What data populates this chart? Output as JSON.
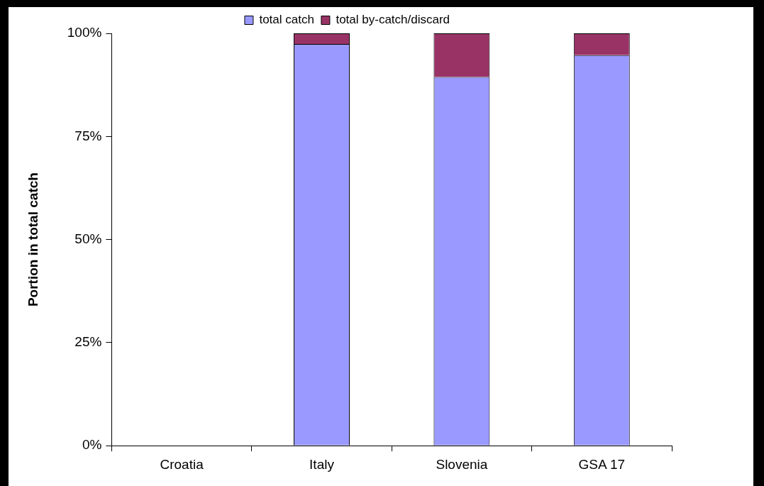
{
  "chart_data": {
    "type": "bar",
    "stacked": true,
    "ylabel": "Portion in total catch",
    "categories": [
      "Croatia",
      "Italy",
      "Slovenia",
      "GSA 17"
    ],
    "series": [
      {
        "name": "total catch",
        "color": "#9999ff",
        "values": [
          0,
          97.4,
          89.4,
          94.7
        ]
      },
      {
        "name": "total by-catch/discard",
        "color": "#993366",
        "values": [
          0,
          2.6,
          10.6,
          5.3
        ]
      }
    ],
    "ylim": [
      0,
      100
    ],
    "yticks": [
      {
        "value": 0,
        "label": "0%"
      },
      {
        "value": 25,
        "label": "25%"
      },
      {
        "value": 50,
        "label": "50%"
      },
      {
        "value": 75,
        "label": "75%"
      },
      {
        "value": 100,
        "label": "100%"
      }
    ],
    "grid": false,
    "legend": "top"
  }
}
